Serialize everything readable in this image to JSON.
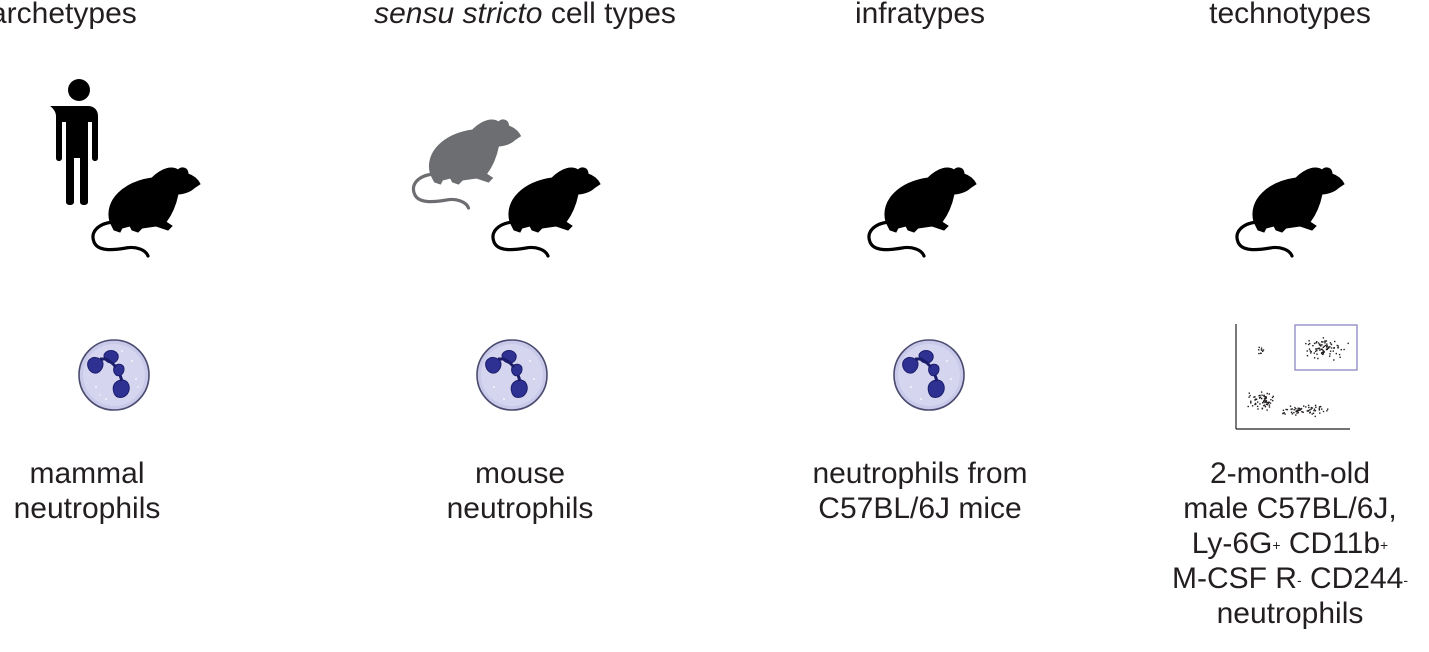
{
  "columns": [
    {
      "header_prefix": "",
      "header_italic": "",
      "header_suffix": "archetypes",
      "label_lines": [
        "mammal",
        "neutrophils"
      ],
      "icons": [
        "human-icon",
        "mouse-icon",
        "neutrophil-cell-icon"
      ]
    },
    {
      "header_prefix": "",
      "header_italic": "sensu stricto",
      "header_suffix": " cell types",
      "label_lines": [
        "mouse",
        "neutrophils"
      ],
      "icons": [
        "rat-icon",
        "mouse-icon",
        "neutrophil-cell-icon"
      ]
    },
    {
      "header_prefix": "",
      "header_italic": "",
      "header_suffix": "infratypes",
      "label_lines": [
        "neutrophils from",
        "C57BL/6J mice"
      ],
      "icons": [
        "mouse-icon",
        "neutrophil-cell-icon"
      ]
    },
    {
      "header_prefix": "",
      "header_italic": "",
      "header_suffix": "technotypes",
      "label_lines": [
        "2-month-old",
        "male C57BL/6J,"
      ],
      "marker_line1": {
        "a": "Ly-6G",
        "a_sup": "+",
        "b": " CD11b",
        "b_sup": "+"
      },
      "marker_line2": {
        "a": "M-CSF R",
        "a_sup": "-",
        "b": " CD244",
        "b_sup": "-"
      },
      "label_last": "neutrophils",
      "icons": [
        "mouse-icon",
        "flow-cytometry-plot-icon"
      ]
    }
  ],
  "colors": {
    "silhouette": "#000000",
    "rat": "#6d6e71",
    "cell_membrane": "#ccccea",
    "nucleus": "#2e3192",
    "gate": "#8b87c3"
  }
}
